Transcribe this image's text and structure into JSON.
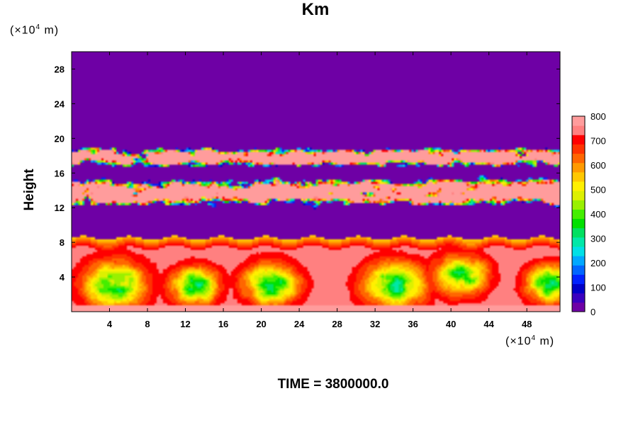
{
  "chart_data": {
    "type": "heatmap",
    "title": "Km",
    "ylabel": "Height",
    "xlabel": "",
    "x_unit_prefix": "(×10",
    "x_unit_exponent": "4",
    "x_unit_suffix": " m)",
    "y_unit_prefix": "(×10",
    "y_unit_exponent": "4",
    "y_unit_suffix": " m)",
    "xlim": [
      0,
      51.5
    ],
    "ylim": [
      0,
      30
    ],
    "x_ticks": [
      4,
      8,
      12,
      16,
      20,
      24,
      28,
      32,
      36,
      40,
      44,
      48
    ],
    "y_ticks": [
      4,
      8,
      12,
      16,
      20,
      24,
      28
    ],
    "x_tick_labels": [
      "4",
      "8",
      "12",
      "16",
      "20",
      "24",
      "28",
      "32",
      "36",
      "40",
      "44",
      "48"
    ],
    "y_tick_labels": [
      "4",
      "8",
      "12",
      "16",
      "20",
      "24",
      "28"
    ],
    "colorbar": {
      "min": 0,
      "max": 800,
      "tick_values": [
        0,
        100,
        200,
        300,
        400,
        500,
        600,
        700,
        800
      ],
      "tick_labels": [
        "0",
        "100",
        "200",
        "300",
        "400",
        "500",
        "600",
        "700",
        "800"
      ],
      "colors": [
        "#6e00a5",
        "#3a00bf",
        "#0000c8",
        "#0022ff",
        "#0066ff",
        "#00a8ff",
        "#00e0e6",
        "#00e8a8",
        "#00e060",
        "#00e000",
        "#44ee00",
        "#99f000",
        "#ddf000",
        "#fff000",
        "#ffc800",
        "#ff9a00",
        "#ff6600",
        "#ff3300",
        "#ff0000",
        "#ff8080",
        "#ff9c9c"
      ]
    },
    "regions": [
      {
        "y_range": [
          0,
          8.5
        ],
        "description_level": "high",
        "typical_value": 800
      },
      {
        "y_range": [
          8.5,
          11.5
        ],
        "typical_value": 0
      },
      {
        "y_range": [
          11.5,
          19.5
        ],
        "typical_value": 800
      },
      {
        "y_range": [
          19.5,
          30
        ],
        "typical_value": 0
      }
    ]
  },
  "time_label": "TIME = 3800000.0"
}
